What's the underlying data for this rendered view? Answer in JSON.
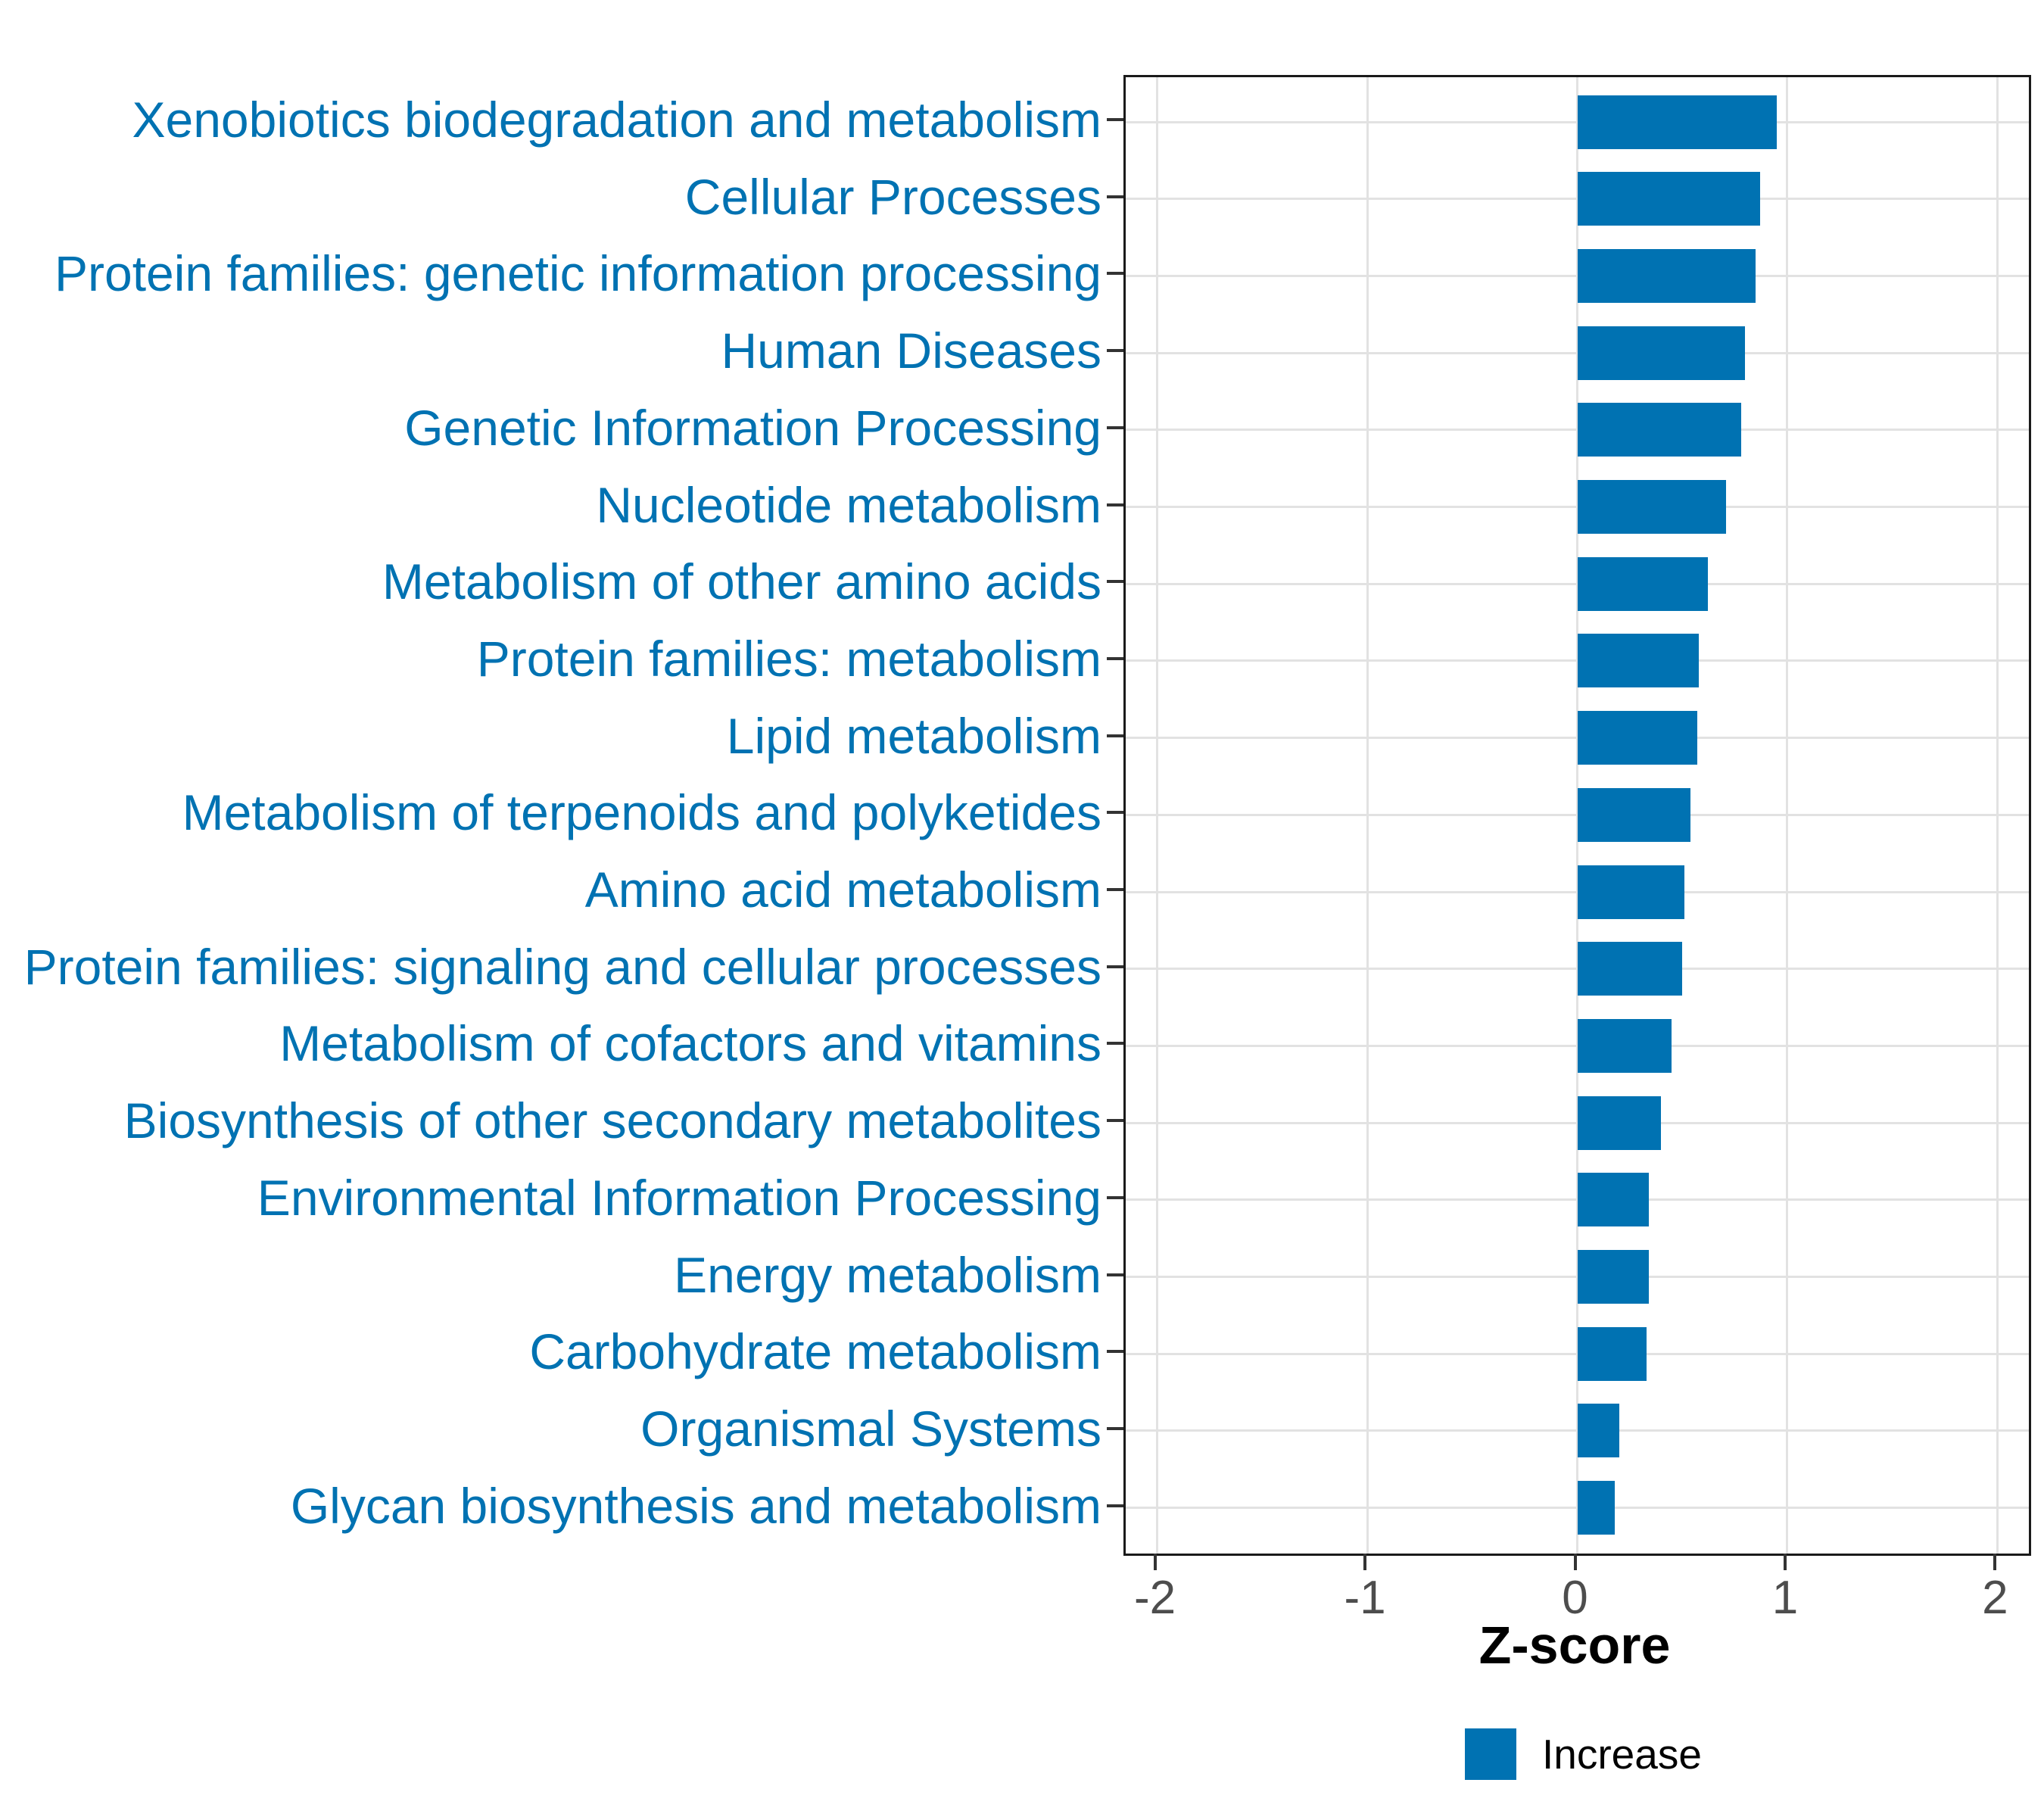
{
  "chart_data": {
    "type": "bar",
    "orientation": "horizontal",
    "title": "",
    "xlabel": "Z-score",
    "ylabel": "",
    "categories": [
      "Xenobiotics biodegradation and metabolism",
      "Cellular Processes",
      "Protein families: genetic information processing",
      "Human Diseases",
      "Genetic Information Processing",
      "Nucleotide metabolism",
      "Metabolism of other amino acids",
      "Protein families: metabolism",
      "Lipid metabolism",
      "Metabolism of terpenoids and polyketides",
      "Amino acid metabolism",
      "Protein families: signaling and cellular processes",
      "Metabolism of cofactors and vitamins",
      "Biosynthesis of other secondary metabolites",
      "Environmental Information Processing",
      "Energy metabolism",
      "Carbohydrate metabolism",
      "Organismal Systems",
      "Glycan biosynthesis and metabolism"
    ],
    "series": [
      {
        "name": "Increase",
        "values": [
          0.95,
          0.87,
          0.85,
          0.8,
          0.78,
          0.71,
          0.62,
          0.58,
          0.57,
          0.54,
          0.51,
          0.5,
          0.45,
          0.4,
          0.34,
          0.34,
          0.33,
          0.2,
          0.18
        ]
      }
    ],
    "xlim": [
      -2.15,
      2.15
    ],
    "x_ticks": [
      "-2",
      "-1",
      "0",
      "1",
      "2"
    ],
    "x_tick_values": [
      -2,
      -1,
      0,
      1,
      2
    ],
    "grid": "major-only",
    "legend": {
      "position": "bottom",
      "items": [
        {
          "label": "Increase",
          "color": "#0072b2"
        }
      ]
    },
    "colors": {
      "bar": "#0072b2",
      "category_label": "#0072b2",
      "x_tick_label": "#4d4d4d",
      "grid": "#e2e2e2",
      "panel_border": "#1a1a1a",
      "axis_tick": "#333333",
      "background": "#ffffff"
    }
  }
}
